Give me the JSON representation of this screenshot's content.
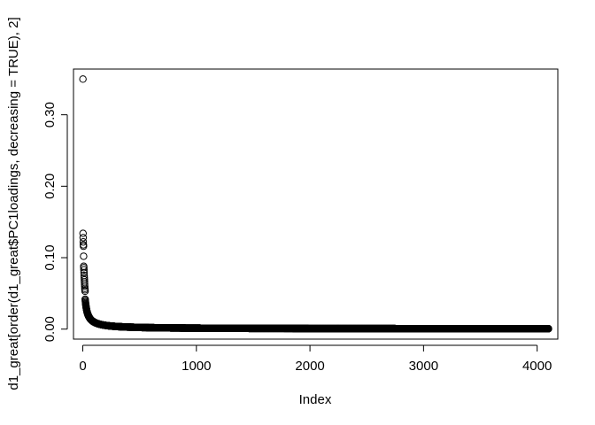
{
  "chart_data": {
    "type": "scatter",
    "xlabel": "Index",
    "ylabel": "d1_great[order(d1_great$PC1loadings, decreasing = TRUE), 2]",
    "title": "",
    "n_points": 4100,
    "xlim": [
      -82,
      4182
    ],
    "ylim": [
      -0.014,
      0.364
    ],
    "x_ticks": [
      0,
      1000,
      2000,
      3000,
      4000
    ],
    "x_tick_labels": [
      "0",
      "1000",
      "2000",
      "3000",
      "4000"
    ],
    "y_ticks": [
      0.0,
      0.1,
      0.2,
      0.3
    ],
    "y_tick_labels": [
      "0.00",
      "0.10",
      "0.20",
      "0.30"
    ],
    "grid": false,
    "legend": "none",
    "head_points": [
      {
        "x": 1,
        "y": 0.35
      },
      {
        "x": 2,
        "y": 0.134
      },
      {
        "x": 3,
        "y": 0.128
      },
      {
        "x": 4,
        "y": 0.122
      },
      {
        "x": 5,
        "y": 0.118
      },
      {
        "x": 6,
        "y": 0.116
      },
      {
        "x": 7,
        "y": 0.102
      },
      {
        "x": 8,
        "y": 0.088
      },
      {
        "x": 9,
        "y": 0.086
      },
      {
        "x": 10,
        "y": 0.083
      },
      {
        "x": 11,
        "y": 0.079
      },
      {
        "x": 12,
        "y": 0.075
      },
      {
        "x": 13,
        "y": 0.072
      },
      {
        "x": 14,
        "y": 0.069
      },
      {
        "x": 15,
        "y": 0.066
      },
      {
        "x": 16,
        "y": 0.063
      },
      {
        "x": 17,
        "y": 0.06
      },
      {
        "x": 18,
        "y": 0.057
      },
      {
        "x": 19,
        "y": 0.055
      },
      {
        "x": 20,
        "y": 0.053
      }
    ],
    "tail_model": {
      "description": "decay y = A * x^-p + c for index > 20",
      "A": 0.75,
      "p": 0.95,
      "c": 0.0003
    }
  }
}
